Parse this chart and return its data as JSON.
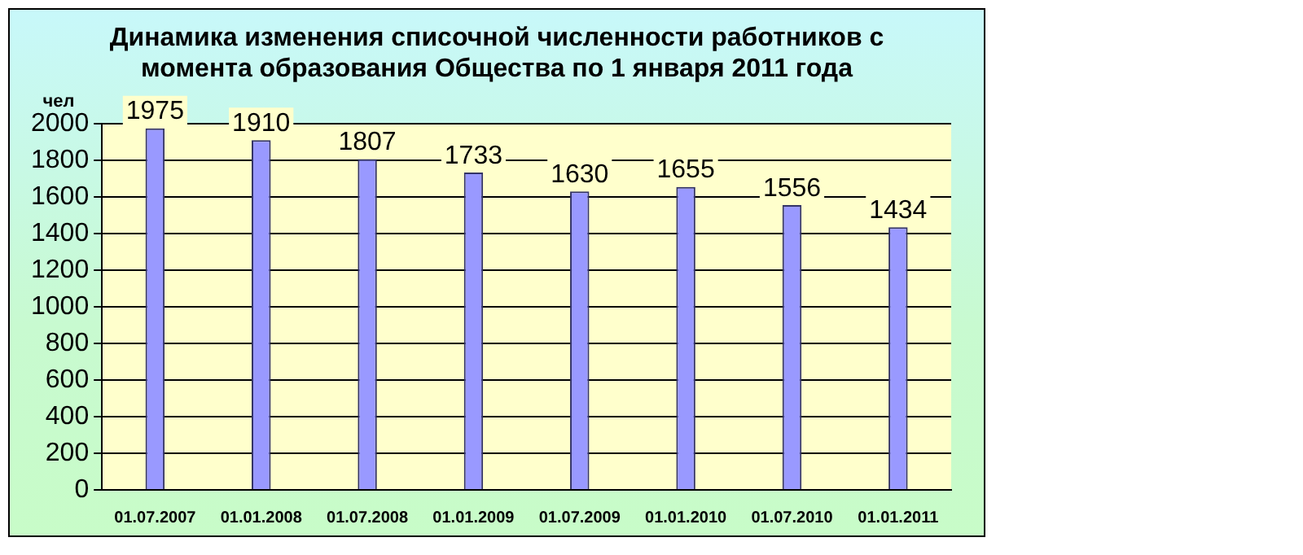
{
  "chart_data": {
    "type": "bar",
    "title": "Динамика изменения списочной численности работников с момента образования Общества по 1 января 2011 года",
    "ylabel": "чел",
    "categories": [
      "01.07.2007",
      "01.01.2008",
      "01.07.2008",
      "01.01.2009",
      "01.07.2009",
      "01.01.2010",
      "01.07.2010",
      "01.01.2011"
    ],
    "values": [
      1975,
      1910,
      1807,
      1733,
      1630,
      1655,
      1556,
      1434
    ],
    "color": "#9999ff",
    "ylim": [
      0,
      2000
    ],
    "yticks": [
      0,
      200,
      400,
      600,
      800,
      1000,
      1200,
      1400,
      1600,
      1800,
      2000
    ],
    "grid": "y",
    "data_labels": true,
    "legend": false
  }
}
